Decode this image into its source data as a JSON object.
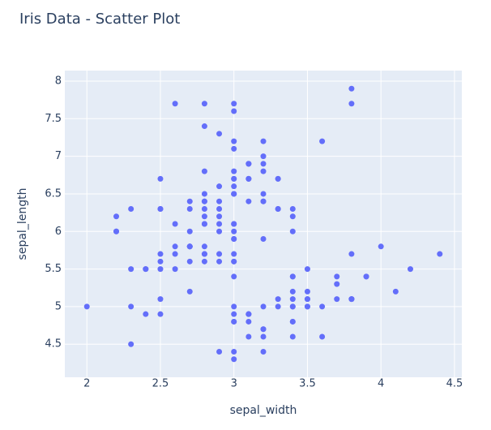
{
  "chart_data": {
    "type": "scatter",
    "title": "Iris Data - Scatter Plot",
    "x_label": "sepal_width",
    "y_label": "sepal_length",
    "color": "#636efa",
    "x": [
      3.5,
      3.0,
      3.2,
      3.1,
      3.6,
      3.9,
      3.4,
      3.4,
      2.9,
      3.1,
      3.7,
      3.4,
      3.0,
      3.0,
      4.0,
      4.4,
      3.9,
      3.5,
      3.8,
      3.8,
      3.4,
      3.7,
      3.6,
      3.3,
      3.4,
      3.0,
      3.4,
      3.5,
      3.4,
      3.2,
      3.1,
      3.4,
      4.1,
      4.2,
      3.1,
      3.2,
      3.5,
      3.1,
      3.0,
      3.4,
      3.5,
      2.3,
      3.2,
      3.5,
      3.8,
      3.0,
      3.8,
      3.2,
      3.7,
      3.3,
      3.2,
      3.2,
      3.1,
      2.3,
      2.8,
      2.8,
      3.3,
      2.4,
      2.9,
      2.7,
      2.0,
      3.0,
      2.2,
      2.9,
      2.9,
      3.1,
      3.0,
      2.7,
      2.2,
      2.5,
      3.2,
      2.8,
      2.5,
      2.8,
      2.9,
      3.0,
      2.8,
      3.0,
      2.9,
      2.6,
      2.4,
      2.4,
      2.7,
      2.7,
      3.0,
      3.4,
      3.1,
      2.3,
      3.0,
      2.5,
      2.6,
      3.0,
      2.6,
      2.3,
      2.7,
      3.0,
      2.9,
      2.9,
      2.5,
      2.8,
      3.3,
      2.7,
      3.0,
      2.9,
      3.0,
      3.0,
      2.5,
      2.9,
      2.5,
      3.6,
      3.2,
      2.7,
      3.0,
      2.5,
      2.8,
      3.2,
      3.0,
      3.8,
      2.6,
      2.2,
      3.2,
      2.8,
      2.8,
      2.7,
      3.3,
      3.2,
      2.8,
      3.0,
      2.8,
      3.0,
      2.8,
      3.8,
      2.8,
      2.8,
      2.6,
      3.0,
      3.4,
      3.1,
      3.0,
      3.1,
      3.1,
      3.1,
      2.7,
      3.2,
      3.3,
      3.0,
      2.5,
      3.0,
      3.4,
      3.0
    ],
    "values": [
      5.1,
      4.9,
      4.7,
      4.6,
      5.0,
      5.4,
      4.6,
      5.0,
      4.4,
      4.9,
      5.4,
      4.8,
      4.8,
      4.3,
      5.8,
      5.7,
      5.4,
      5.1,
      5.7,
      5.1,
      5.4,
      5.1,
      4.6,
      5.1,
      4.8,
      5.0,
      5.0,
      5.2,
      5.2,
      4.7,
      4.8,
      5.4,
      5.2,
      5.5,
      4.9,
      5.0,
      5.5,
      4.9,
      4.4,
      5.1,
      5.0,
      4.5,
      4.4,
      5.0,
      5.1,
      4.8,
      5.1,
      4.6,
      5.3,
      5.0,
      7.0,
      6.4,
      6.9,
      5.5,
      6.5,
      5.7,
      6.3,
      4.9,
      6.6,
      5.2,
      5.0,
      5.9,
      6.0,
      6.1,
      5.6,
      6.7,
      5.6,
      5.8,
      6.2,
      5.6,
      5.9,
      6.1,
      6.3,
      6.1,
      6.4,
      6.6,
      6.8,
      6.7,
      6.0,
      5.7,
      5.5,
      5.5,
      5.8,
      6.0,
      5.4,
      6.0,
      6.7,
      6.3,
      5.6,
      5.5,
      5.5,
      6.1,
      5.8,
      5.0,
      5.6,
      5.7,
      5.7,
      6.2,
      5.1,
      5.7,
      6.3,
      5.8,
      7.1,
      6.3,
      6.5,
      7.6,
      4.9,
      7.3,
      6.7,
      7.2,
      6.5,
      6.4,
      6.8,
      5.7,
      5.8,
      6.4,
      6.5,
      7.7,
      7.7,
      6.0,
      6.9,
      5.6,
      7.7,
      6.3,
      6.7,
      7.2,
      6.2,
      6.1,
      6.4,
      7.2,
      7.4,
      7.9,
      6.4,
      6.3,
      6.1,
      7.7,
      6.3,
      6.4,
      6.0,
      6.9,
      6.7,
      6.9,
      5.8,
      6.8,
      6.7,
      6.7,
      6.3,
      6.5,
      6.2,
      5.9
    ],
    "xlim": [
      1.85,
      4.55
    ],
    "ylim": [
      4.06,
      8.14
    ],
    "xticks": [
      2,
      2.5,
      3,
      3.5,
      4,
      4.5
    ],
    "yticks": [
      4.5,
      5,
      5.5,
      6,
      6.5,
      7,
      7.5,
      8
    ],
    "grid": true
  }
}
